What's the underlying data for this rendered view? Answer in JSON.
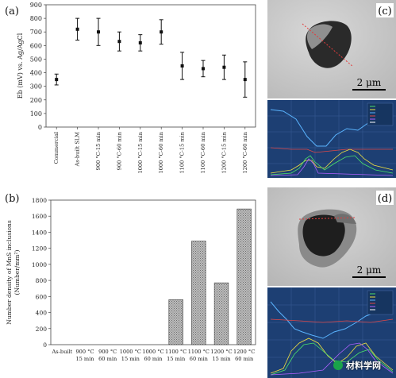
{
  "chart_data": [
    {
      "panel": "(a)",
      "type": "scatter",
      "ylabel": "Eb (mV) vs. Ag/AgCl",
      "ylim": [
        0,
        900
      ],
      "yticks": [
        0,
        100,
        200,
        300,
        400,
        500,
        600,
        700,
        800,
        900
      ],
      "categories": [
        "Commercial",
        "As-built SLM",
        "900 °C-15 min",
        "900 °C-60 min",
        "1000 °C-15 min",
        "1000 °C-60 min",
        "1100 °C-15 min",
        "1100 °C-60 min",
        "1200 °C-15 min",
        "1200 °C-60 min"
      ],
      "values": [
        350,
        720,
        700,
        630,
        620,
        700,
        450,
        430,
        440,
        350
      ],
      "err_high": [
        390,
        800,
        800,
        700,
        680,
        790,
        550,
        490,
        530,
        480
      ],
      "err_low": [
        310,
        640,
        600,
        560,
        560,
        610,
        350,
        370,
        350,
        220
      ]
    },
    {
      "panel": "(b)",
      "type": "bar",
      "ylabel_line1": "Number density of MnS inclusions",
      "ylabel_line2": "(Number/mm²)",
      "ylim": [
        0,
        1800
      ],
      "yticks": [
        0,
        200,
        400,
        600,
        800,
        1000,
        1200,
        1400,
        1600,
        1800
      ],
      "categories": [
        {
          "l1": "As-built",
          "l2": ""
        },
        {
          "l1": "900 °C",
          "l2": "15 min"
        },
        {
          "l1": "900 °C",
          "l2": "60 min"
        },
        {
          "l1": "1000 °C",
          "l2": "15 min"
        },
        {
          "l1": "1000 °C",
          "l2": "60 min"
        },
        {
          "l1": "1100 °C",
          "l2": "15 min"
        },
        {
          "l1": "1100 °C",
          "l2": "60 min"
        },
        {
          "l1": "1200 °C",
          "l2": "15 min"
        },
        {
          "l1": "1200 °C",
          "l2": "60 min"
        }
      ],
      "values": [
        0,
        0,
        0,
        0,
        0,
        560,
        1290,
        770,
        1690
      ]
    }
  ],
  "panels": {
    "a": "(a)",
    "b": "(b)",
    "c": "(c)",
    "d": "(d)"
  },
  "scale_bar_c": "2 μm",
  "scale_bar_d": "2 μm",
  "watermark": "材料学网",
  "colors": {
    "bar_fill": "#bdbdbd",
    "spectrum_bg": "#1d3f73",
    "line_trace": "#e23b3b"
  }
}
